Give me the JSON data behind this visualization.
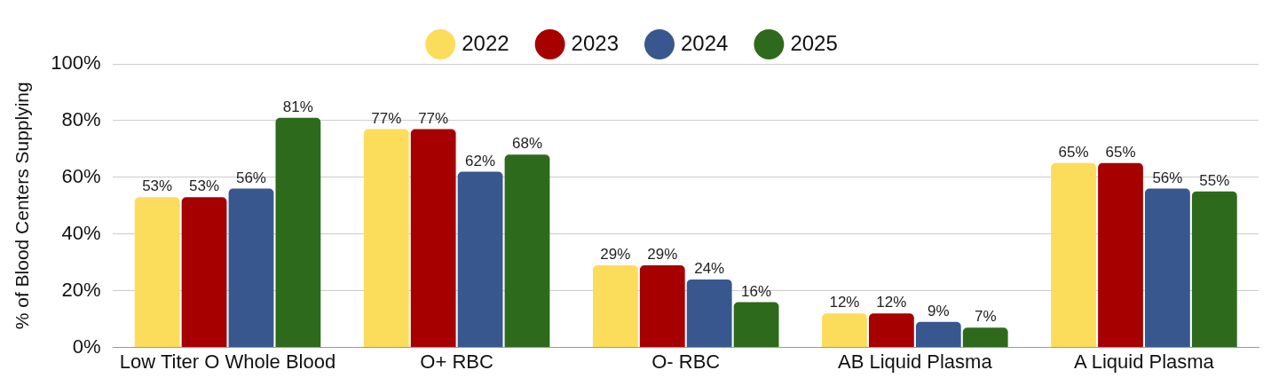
{
  "chart_data": {
    "type": "bar",
    "ylabel": "% of Blood Centers Supplying",
    "categories": [
      "Low Titer O Whole Blood",
      "O+ RBC",
      "O- RBC",
      "AB Liquid Plasma",
      "A Liquid Plasma"
    ],
    "series": [
      {
        "name": "2022",
        "color": "#fcdc5b",
        "values": [
          53,
          77,
          29,
          12,
          65
        ],
        "value_labels": [
          "53%",
          "77%",
          "29%",
          "12%",
          "65%"
        ]
      },
      {
        "name": "2023",
        "color": "#a60000",
        "values": [
          53,
          77,
          29,
          12,
          65
        ],
        "value_labels": [
          "53%",
          "77%",
          "29%",
          "12%",
          "65%"
        ]
      },
      {
        "name": "2024",
        "color": "#38578e",
        "values": [
          56,
          62,
          24,
          9,
          56
        ],
        "value_labels": [
          "56%",
          "62%",
          "24%",
          "9%",
          "56%"
        ]
      },
      {
        "name": "2025",
        "color": "#2e6a1b",
        "values": [
          81,
          68,
          16,
          7,
          55
        ],
        "value_labels": [
          "81%",
          "68%",
          "16%",
          "7%",
          "55%"
        ]
      }
    ],
    "ylim": [
      0,
      100
    ],
    "yticks": [
      {
        "value": 0,
        "label": "0%"
      },
      {
        "value": 20,
        "label": "20%"
      },
      {
        "value": 40,
        "label": "40%"
      },
      {
        "value": 60,
        "label": "60%"
      },
      {
        "value": 80,
        "label": "80%"
      },
      {
        "value": 100,
        "label": "100%"
      }
    ],
    "grid": "y",
    "legend": "top"
  }
}
